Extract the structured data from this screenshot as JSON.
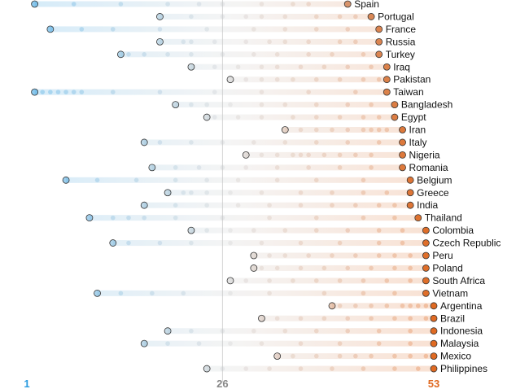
{
  "chart_data": {
    "type": "scatter",
    "title": "",
    "xlabel": "",
    "ylabel": "",
    "xlim": [
      1,
      53
    ],
    "x_ticks": [
      {
        "value": 1,
        "label": "1"
      },
      {
        "value": 26,
        "label": "26"
      },
      {
        "value": 53,
        "label": "53"
      }
    ],
    "grid": "vertical line at 26",
    "colors": {
      "low": "#2a9be0",
      "high": "#e06a22",
      "mid": "#cccccc",
      "tick_low": "#2a9be0",
      "tick_mid": "#888888",
      "tick_high": "#e06a22"
    },
    "rows": [
      {
        "country": "Spain",
        "start": 2,
        "end": 42,
        "hist": [
          7,
          13,
          19,
          23,
          26,
          31,
          35,
          37
        ]
      },
      {
        "country": "Portugal",
        "start": 18,
        "end": 45,
        "hist": [
          22,
          26,
          29,
          31,
          34,
          38,
          41,
          43
        ]
      },
      {
        "country": "France",
        "start": 4,
        "end": 46,
        "hist": [
          8,
          12,
          18,
          24,
          30,
          34,
          38,
          42
        ]
      },
      {
        "country": "Russia",
        "start": 18,
        "end": 46,
        "hist": [
          21,
          22,
          25,
          29,
          32,
          34,
          37,
          41,
          43
        ]
      },
      {
        "country": "Turkey",
        "start": 13,
        "end": 46,
        "hist": [
          14,
          16,
          19,
          22,
          26,
          30,
          33,
          37,
          40,
          44
        ]
      },
      {
        "country": "Iraq",
        "start": 22,
        "end": 47,
        "hist": [
          25,
          28,
          31,
          33,
          36,
          39,
          42,
          45
        ]
      },
      {
        "country": "Pakistan",
        "start": 27,
        "end": 47,
        "hist": [
          29,
          31,
          33,
          35,
          38,
          41,
          44,
          46
        ]
      },
      {
        "country": "Taiwan",
        "start": 2,
        "end": 47,
        "hist": [
          3,
          4,
          5,
          6,
          7,
          8,
          12,
          18,
          25,
          31,
          37,
          43
        ]
      },
      {
        "country": "Bangladesh",
        "start": 20,
        "end": 48,
        "hist": [
          22,
          24,
          27,
          31,
          34,
          38,
          42,
          45
        ]
      },
      {
        "country": "Egypt",
        "start": 24,
        "end": 48,
        "hist": [
          25,
          28,
          31,
          35,
          38,
          41,
          44,
          46
        ]
      },
      {
        "country": "Iran",
        "start": 34,
        "end": 49,
        "hist": [
          36,
          38,
          40,
          42,
          44,
          45,
          46,
          47
        ]
      },
      {
        "country": "Italy",
        "start": 16,
        "end": 49,
        "hist": [
          18,
          22,
          26,
          30,
          34,
          38,
          42,
          46
        ]
      },
      {
        "country": "Nigeria",
        "start": 29,
        "end": 49,
        "hist": [
          31,
          33,
          35,
          36,
          37,
          39,
          41,
          43,
          45
        ]
      },
      {
        "country": "Romania",
        "start": 17,
        "end": 49,
        "hist": [
          20,
          23,
          26,
          29,
          33,
          37,
          41,
          45
        ]
      },
      {
        "country": "Belgium",
        "start": 6,
        "end": 50,
        "hist": [
          10,
          15,
          20,
          24,
          28,
          33,
          38,
          44
        ]
      },
      {
        "country": "Greece",
        "start": 19,
        "end": 50,
        "hist": [
          21,
          22,
          24,
          27,
          31,
          36,
          40,
          44,
          47
        ]
      },
      {
        "country": "India",
        "start": 16,
        "end": 50,
        "hist": [
          20,
          24,
          28,
          32,
          36,
          40,
          43,
          46,
          48
        ]
      },
      {
        "country": "Thailand",
        "start": 9,
        "end": 51,
        "hist": [
          12,
          14,
          16,
          20,
          26,
          32,
          38,
          44,
          48
        ]
      },
      {
        "country": "Colombia",
        "start": 22,
        "end": 52,
        "hist": [
          24,
          27,
          30,
          34,
          38,
          42,
          46,
          49
        ]
      },
      {
        "country": "Czech Republic",
        "start": 12,
        "end": 52,
        "hist": [
          14,
          18,
          22,
          27,
          31,
          36,
          41,
          46,
          49
        ]
      },
      {
        "country": "Peru",
        "start": 30,
        "end": 52,
        "hist": [
          32,
          34,
          37,
          40,
          43,
          46,
          48,
          50
        ]
      },
      {
        "country": "Poland",
        "start": 30,
        "end": 52,
        "hist": [
          31,
          33,
          36,
          39,
          42,
          45,
          48,
          50
        ]
      },
      {
        "country": "South Africa",
        "start": 27,
        "end": 52,
        "hist": [
          29,
          32,
          35,
          38,
          41,
          44,
          47,
          50
        ]
      },
      {
        "country": "Vietnam",
        "start": 10,
        "end": 52,
        "hist": [
          13,
          17,
          21,
          27,
          32,
          39,
          44,
          48
        ]
      },
      {
        "country": "Argentina",
        "start": 40,
        "end": 53,
        "hist": [
          41,
          43,
          45,
          47,
          49,
          50,
          51,
          52
        ]
      },
      {
        "country": "Brazil",
        "start": 31,
        "end": 53,
        "hist": [
          33,
          36,
          39,
          42,
          45,
          48,
          50,
          52
        ]
      },
      {
        "country": "Indonesia",
        "start": 19,
        "end": 53,
        "hist": [
          22,
          26,
          30,
          34,
          38,
          42,
          46,
          50
        ]
      },
      {
        "country": "Malaysia",
        "start": 16,
        "end": 53,
        "hist": [
          19,
          23,
          27,
          31,
          36,
          41,
          46,
          50
        ]
      },
      {
        "country": "Mexico",
        "start": 33,
        "end": 53,
        "hist": [
          35,
          38,
          41,
          43,
          45,
          48,
          50,
          52
        ]
      },
      {
        "country": "Philippines",
        "start": 24,
        "end": 53,
        "hist": [
          26,
          29,
          32,
          36,
          40,
          44,
          48,
          51
        ]
      }
    ]
  }
}
